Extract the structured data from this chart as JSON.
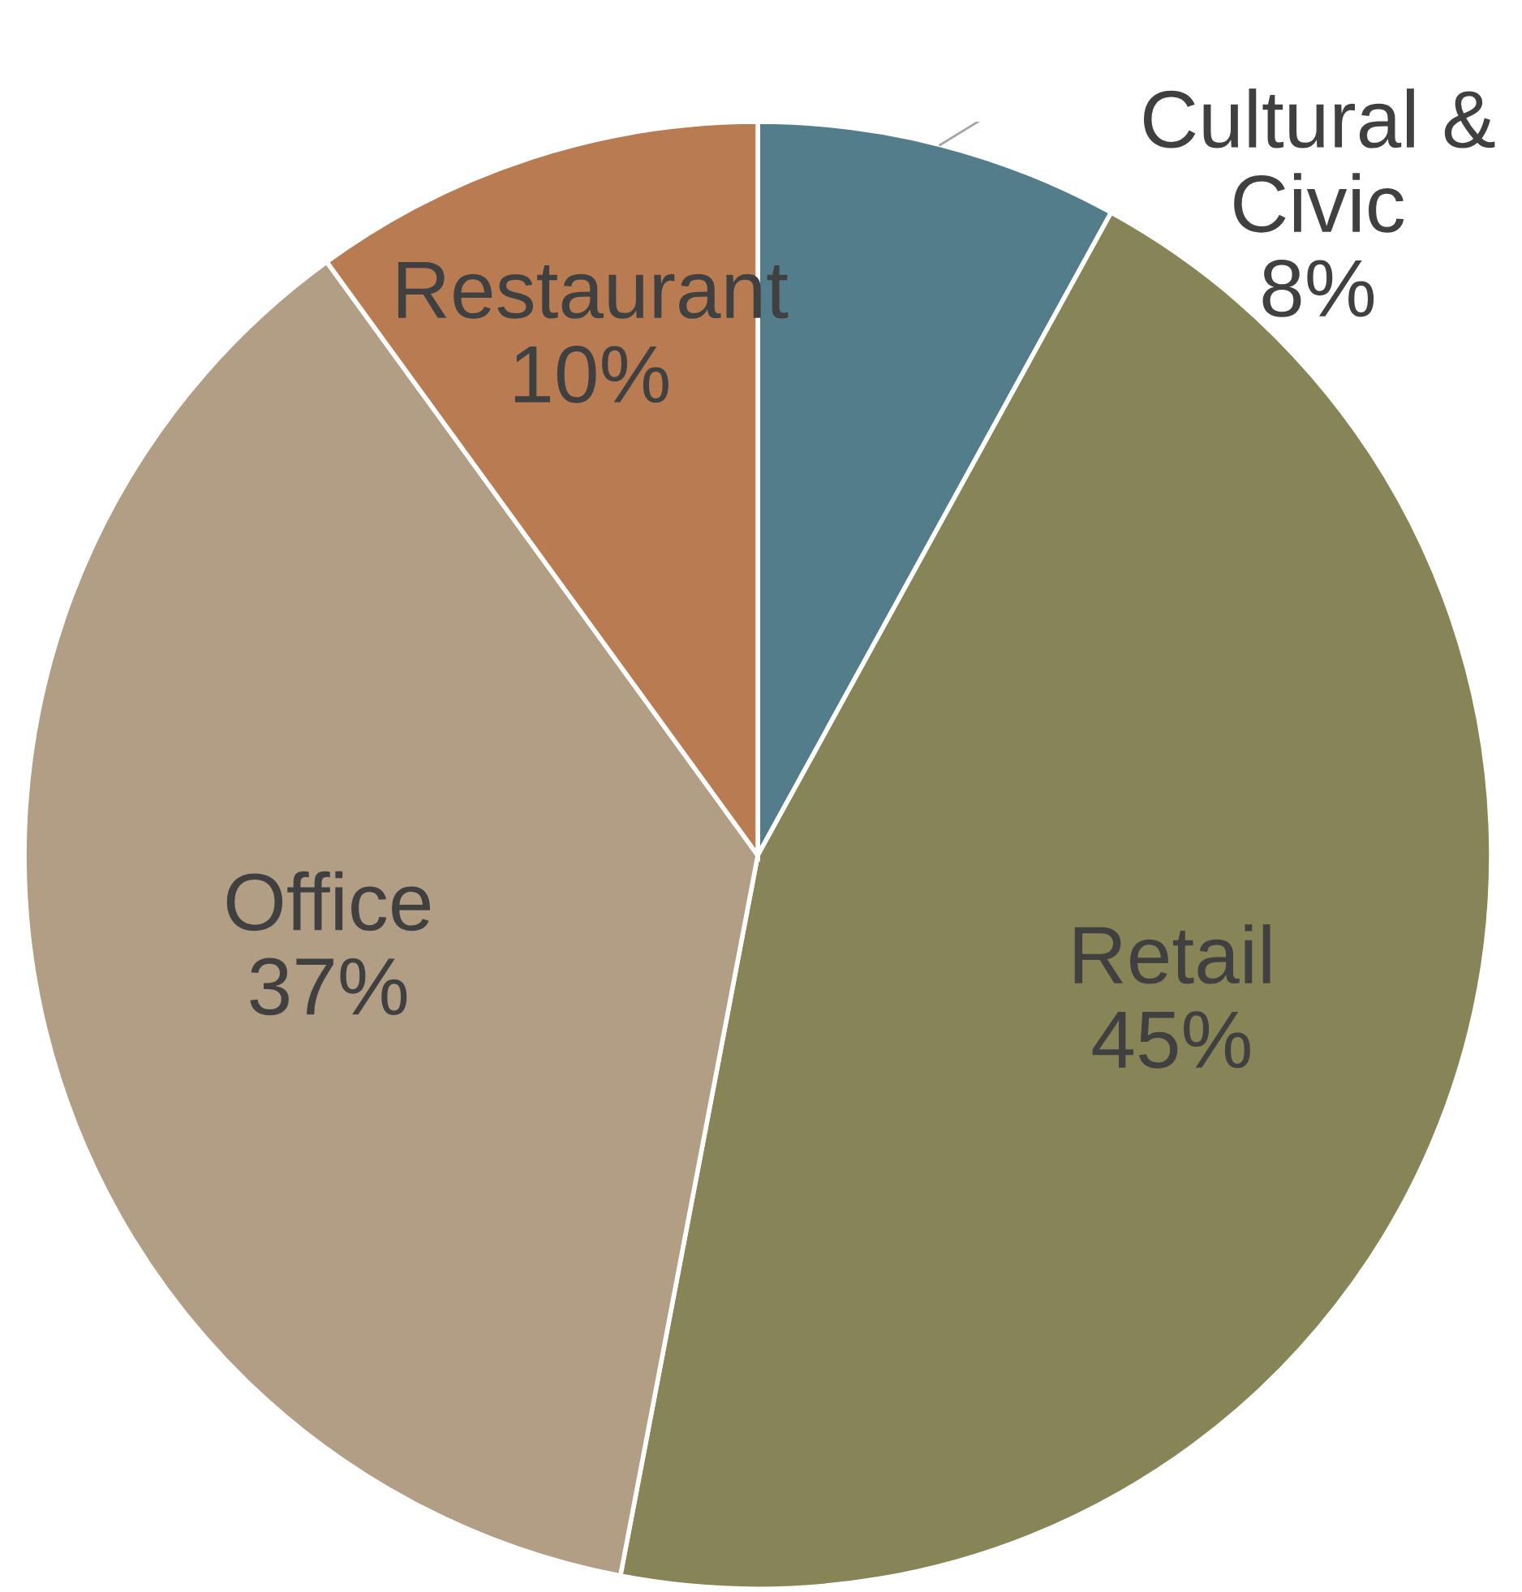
{
  "chart_data": {
    "type": "pie",
    "categories": [
      "Cultural & Civic",
      "Retail",
      "Office",
      "Restaurant"
    ],
    "values": [
      8,
      45,
      37,
      10
    ],
    "colors": [
      "#547d8b",
      "#878557",
      "#b29e85",
      "#b87b52"
    ],
    "value_labels": [
      "8%",
      "45%",
      "37%",
      "10%"
    ]
  }
}
